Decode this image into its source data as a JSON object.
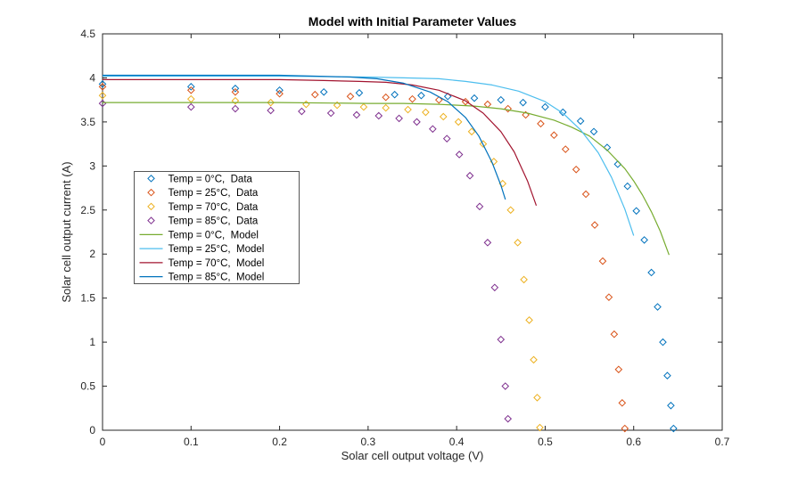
{
  "window": {
    "background": "#ffffff"
  },
  "chart_data": {
    "type": "scatter",
    "title": "Model with Initial Parameter Values",
    "xlabel": "Solar cell output voltage (V)",
    "ylabel": "Solar cell output current (A)",
    "xlim": [
      0,
      0.7
    ],
    "ylim": [
      0,
      4.5
    ],
    "x_ticks": [
      "0",
      "0.1",
      "0.2",
      "0.3",
      "0.4",
      "0.5",
      "0.6",
      "0.7"
    ],
    "y_ticks": [
      "0",
      "0.5",
      "1",
      "1.5",
      "2",
      "2.5",
      "3",
      "3.5",
      "4",
      "4.5"
    ],
    "grid": false,
    "axis_color": "#262626",
    "legend": {
      "position": "inside-west",
      "background": "#ffffff",
      "border_color": "#565656"
    },
    "series": [
      {
        "id": "data-0c",
        "name": "Temp = 0°C,  Data",
        "kind": "scatter",
        "marker": "diamond",
        "color": "#0072BD",
        "points": [
          [
            0,
            3.93
          ],
          [
            0.1,
            3.9
          ],
          [
            0.15,
            3.88
          ],
          [
            0.2,
            3.86
          ],
          [
            0.25,
            3.84
          ],
          [
            0.29,
            3.83
          ],
          [
            0.33,
            3.81
          ],
          [
            0.36,
            3.8
          ],
          [
            0.39,
            3.79
          ],
          [
            0.42,
            3.77
          ],
          [
            0.45,
            3.75
          ],
          [
            0.475,
            3.72
          ],
          [
            0.5,
            3.67
          ],
          [
            0.52,
            3.61
          ],
          [
            0.54,
            3.51
          ],
          [
            0.555,
            3.39
          ],
          [
            0.57,
            3.21
          ],
          [
            0.582,
            3.02
          ],
          [
            0.593,
            2.77
          ],
          [
            0.603,
            2.49
          ],
          [
            0.612,
            2.16
          ],
          [
            0.62,
            1.79
          ],
          [
            0.627,
            1.4
          ],
          [
            0.633,
            1.0
          ],
          [
            0.638,
            0.62
          ],
          [
            0.642,
            0.28
          ],
          [
            0.645,
            0.02
          ]
        ]
      },
      {
        "id": "data-25c",
        "name": "Temp = 25°C,  Data",
        "kind": "scatter",
        "marker": "diamond",
        "color": "#D95319",
        "points": [
          [
            0,
            3.9
          ],
          [
            0.1,
            3.86
          ],
          [
            0.15,
            3.84
          ],
          [
            0.2,
            3.82
          ],
          [
            0.24,
            3.81
          ],
          [
            0.28,
            3.79
          ],
          [
            0.32,
            3.78
          ],
          [
            0.35,
            3.76
          ],
          [
            0.38,
            3.75
          ],
          [
            0.41,
            3.73
          ],
          [
            0.435,
            3.7
          ],
          [
            0.458,
            3.65
          ],
          [
            0.478,
            3.58
          ],
          [
            0.495,
            3.48
          ],
          [
            0.51,
            3.35
          ],
          [
            0.523,
            3.19
          ],
          [
            0.535,
            2.96
          ],
          [
            0.546,
            2.68
          ],
          [
            0.556,
            2.33
          ],
          [
            0.565,
            1.92
          ],
          [
            0.572,
            1.51
          ],
          [
            0.578,
            1.09
          ],
          [
            0.583,
            0.69
          ],
          [
            0.587,
            0.31
          ],
          [
            0.59,
            0.02
          ]
        ]
      },
      {
        "id": "data-70c",
        "name": "Temp = 70°C,  Data",
        "kind": "scatter",
        "marker": "diamond",
        "color": "#EDB120",
        "points": [
          [
            0,
            3.8
          ],
          [
            0.1,
            3.76
          ],
          [
            0.15,
            3.74
          ],
          [
            0.19,
            3.72
          ],
          [
            0.23,
            3.7
          ],
          [
            0.265,
            3.69
          ],
          [
            0.295,
            3.67
          ],
          [
            0.32,
            3.66
          ],
          [
            0.345,
            3.64
          ],
          [
            0.365,
            3.61
          ],
          [
            0.385,
            3.56
          ],
          [
            0.402,
            3.5
          ],
          [
            0.417,
            3.39
          ],
          [
            0.43,
            3.25
          ],
          [
            0.442,
            3.05
          ],
          [
            0.452,
            2.8
          ],
          [
            0.461,
            2.5
          ],
          [
            0.469,
            2.13
          ],
          [
            0.476,
            1.71
          ],
          [
            0.482,
            1.25
          ],
          [
            0.487,
            0.8
          ],
          [
            0.491,
            0.37
          ],
          [
            0.494,
            0.03
          ]
        ]
      },
      {
        "id": "data-85c",
        "name": "Temp = 85°C,  Data",
        "kind": "scatter",
        "marker": "diamond",
        "color": "#7E2F8E",
        "points": [
          [
            0,
            3.71
          ],
          [
            0.1,
            3.67
          ],
          [
            0.15,
            3.65
          ],
          [
            0.19,
            3.63
          ],
          [
            0.225,
            3.62
          ],
          [
            0.258,
            3.6
          ],
          [
            0.287,
            3.58
          ],
          [
            0.312,
            3.57
          ],
          [
            0.335,
            3.54
          ],
          [
            0.355,
            3.5
          ],
          [
            0.373,
            3.42
          ],
          [
            0.389,
            3.31
          ],
          [
            0.403,
            3.13
          ],
          [
            0.415,
            2.89
          ],
          [
            0.426,
            2.54
          ],
          [
            0.435,
            2.13
          ],
          [
            0.443,
            1.62
          ],
          [
            0.45,
            1.03
          ],
          [
            0.455,
            0.5
          ],
          [
            0.458,
            0.13
          ]
        ]
      },
      {
        "id": "model-0c",
        "name": "Temp = 0°C,  Model",
        "kind": "line",
        "color": "#77AC30",
        "points": [
          [
            0,
            3.72
          ],
          [
            0.1,
            3.72
          ],
          [
            0.2,
            3.72
          ],
          [
            0.3,
            3.71
          ],
          [
            0.34,
            3.71
          ],
          [
            0.38,
            3.7
          ],
          [
            0.42,
            3.68
          ],
          [
            0.45,
            3.65
          ],
          [
            0.48,
            3.6
          ],
          [
            0.51,
            3.52
          ],
          [
            0.53,
            3.44
          ],
          [
            0.55,
            3.34
          ],
          [
            0.57,
            3.18
          ],
          [
            0.59,
            2.97
          ],
          [
            0.6,
            2.83
          ],
          [
            0.61,
            2.67
          ],
          [
            0.62,
            2.48
          ],
          [
            0.63,
            2.26
          ],
          [
            0.64,
            1.99
          ]
        ]
      },
      {
        "id": "model-25c",
        "name": "Temp = 25°C,  Model",
        "kind": "line",
        "color": "#4DBEEE",
        "points": [
          [
            0,
            4.02
          ],
          [
            0.1,
            4.02
          ],
          [
            0.2,
            4.02
          ],
          [
            0.3,
            4.01
          ],
          [
            0.34,
            4.0
          ],
          [
            0.38,
            3.99
          ],
          [
            0.41,
            3.96
          ],
          [
            0.44,
            3.92
          ],
          [
            0.47,
            3.85
          ],
          [
            0.5,
            3.73
          ],
          [
            0.52,
            3.6
          ],
          [
            0.54,
            3.41
          ],
          [
            0.56,
            3.15
          ],
          [
            0.575,
            2.87
          ],
          [
            0.59,
            2.51
          ],
          [
            0.6,
            2.21
          ]
        ]
      },
      {
        "id": "model-70c",
        "name": "Temp = 70°C,  Model",
        "kind": "line",
        "color": "#A2142F",
        "points": [
          [
            0,
            3.98
          ],
          [
            0.1,
            3.98
          ],
          [
            0.2,
            3.98
          ],
          [
            0.25,
            3.97
          ],
          [
            0.29,
            3.96
          ],
          [
            0.32,
            3.95
          ],
          [
            0.35,
            3.92
          ],
          [
            0.38,
            3.86
          ],
          [
            0.41,
            3.74
          ],
          [
            0.43,
            3.6
          ],
          [
            0.45,
            3.39
          ],
          [
            0.465,
            3.16
          ],
          [
            0.48,
            2.83
          ],
          [
            0.49,
            2.55
          ]
        ]
      },
      {
        "id": "model-85c",
        "name": "Temp = 85°C,  Model",
        "kind": "line",
        "color": "#0072BD",
        "points": [
          [
            0,
            4.03
          ],
          [
            0.1,
            4.03
          ],
          [
            0.2,
            4.03
          ],
          [
            0.24,
            4.02
          ],
          [
            0.28,
            4.01
          ],
          [
            0.31,
            3.99
          ],
          [
            0.34,
            3.94
          ],
          [
            0.37,
            3.84
          ],
          [
            0.39,
            3.73
          ],
          [
            0.41,
            3.55
          ],
          [
            0.425,
            3.34
          ],
          [
            0.44,
            3.04
          ],
          [
            0.45,
            2.78
          ],
          [
            0.455,
            2.62
          ]
        ]
      }
    ]
  }
}
